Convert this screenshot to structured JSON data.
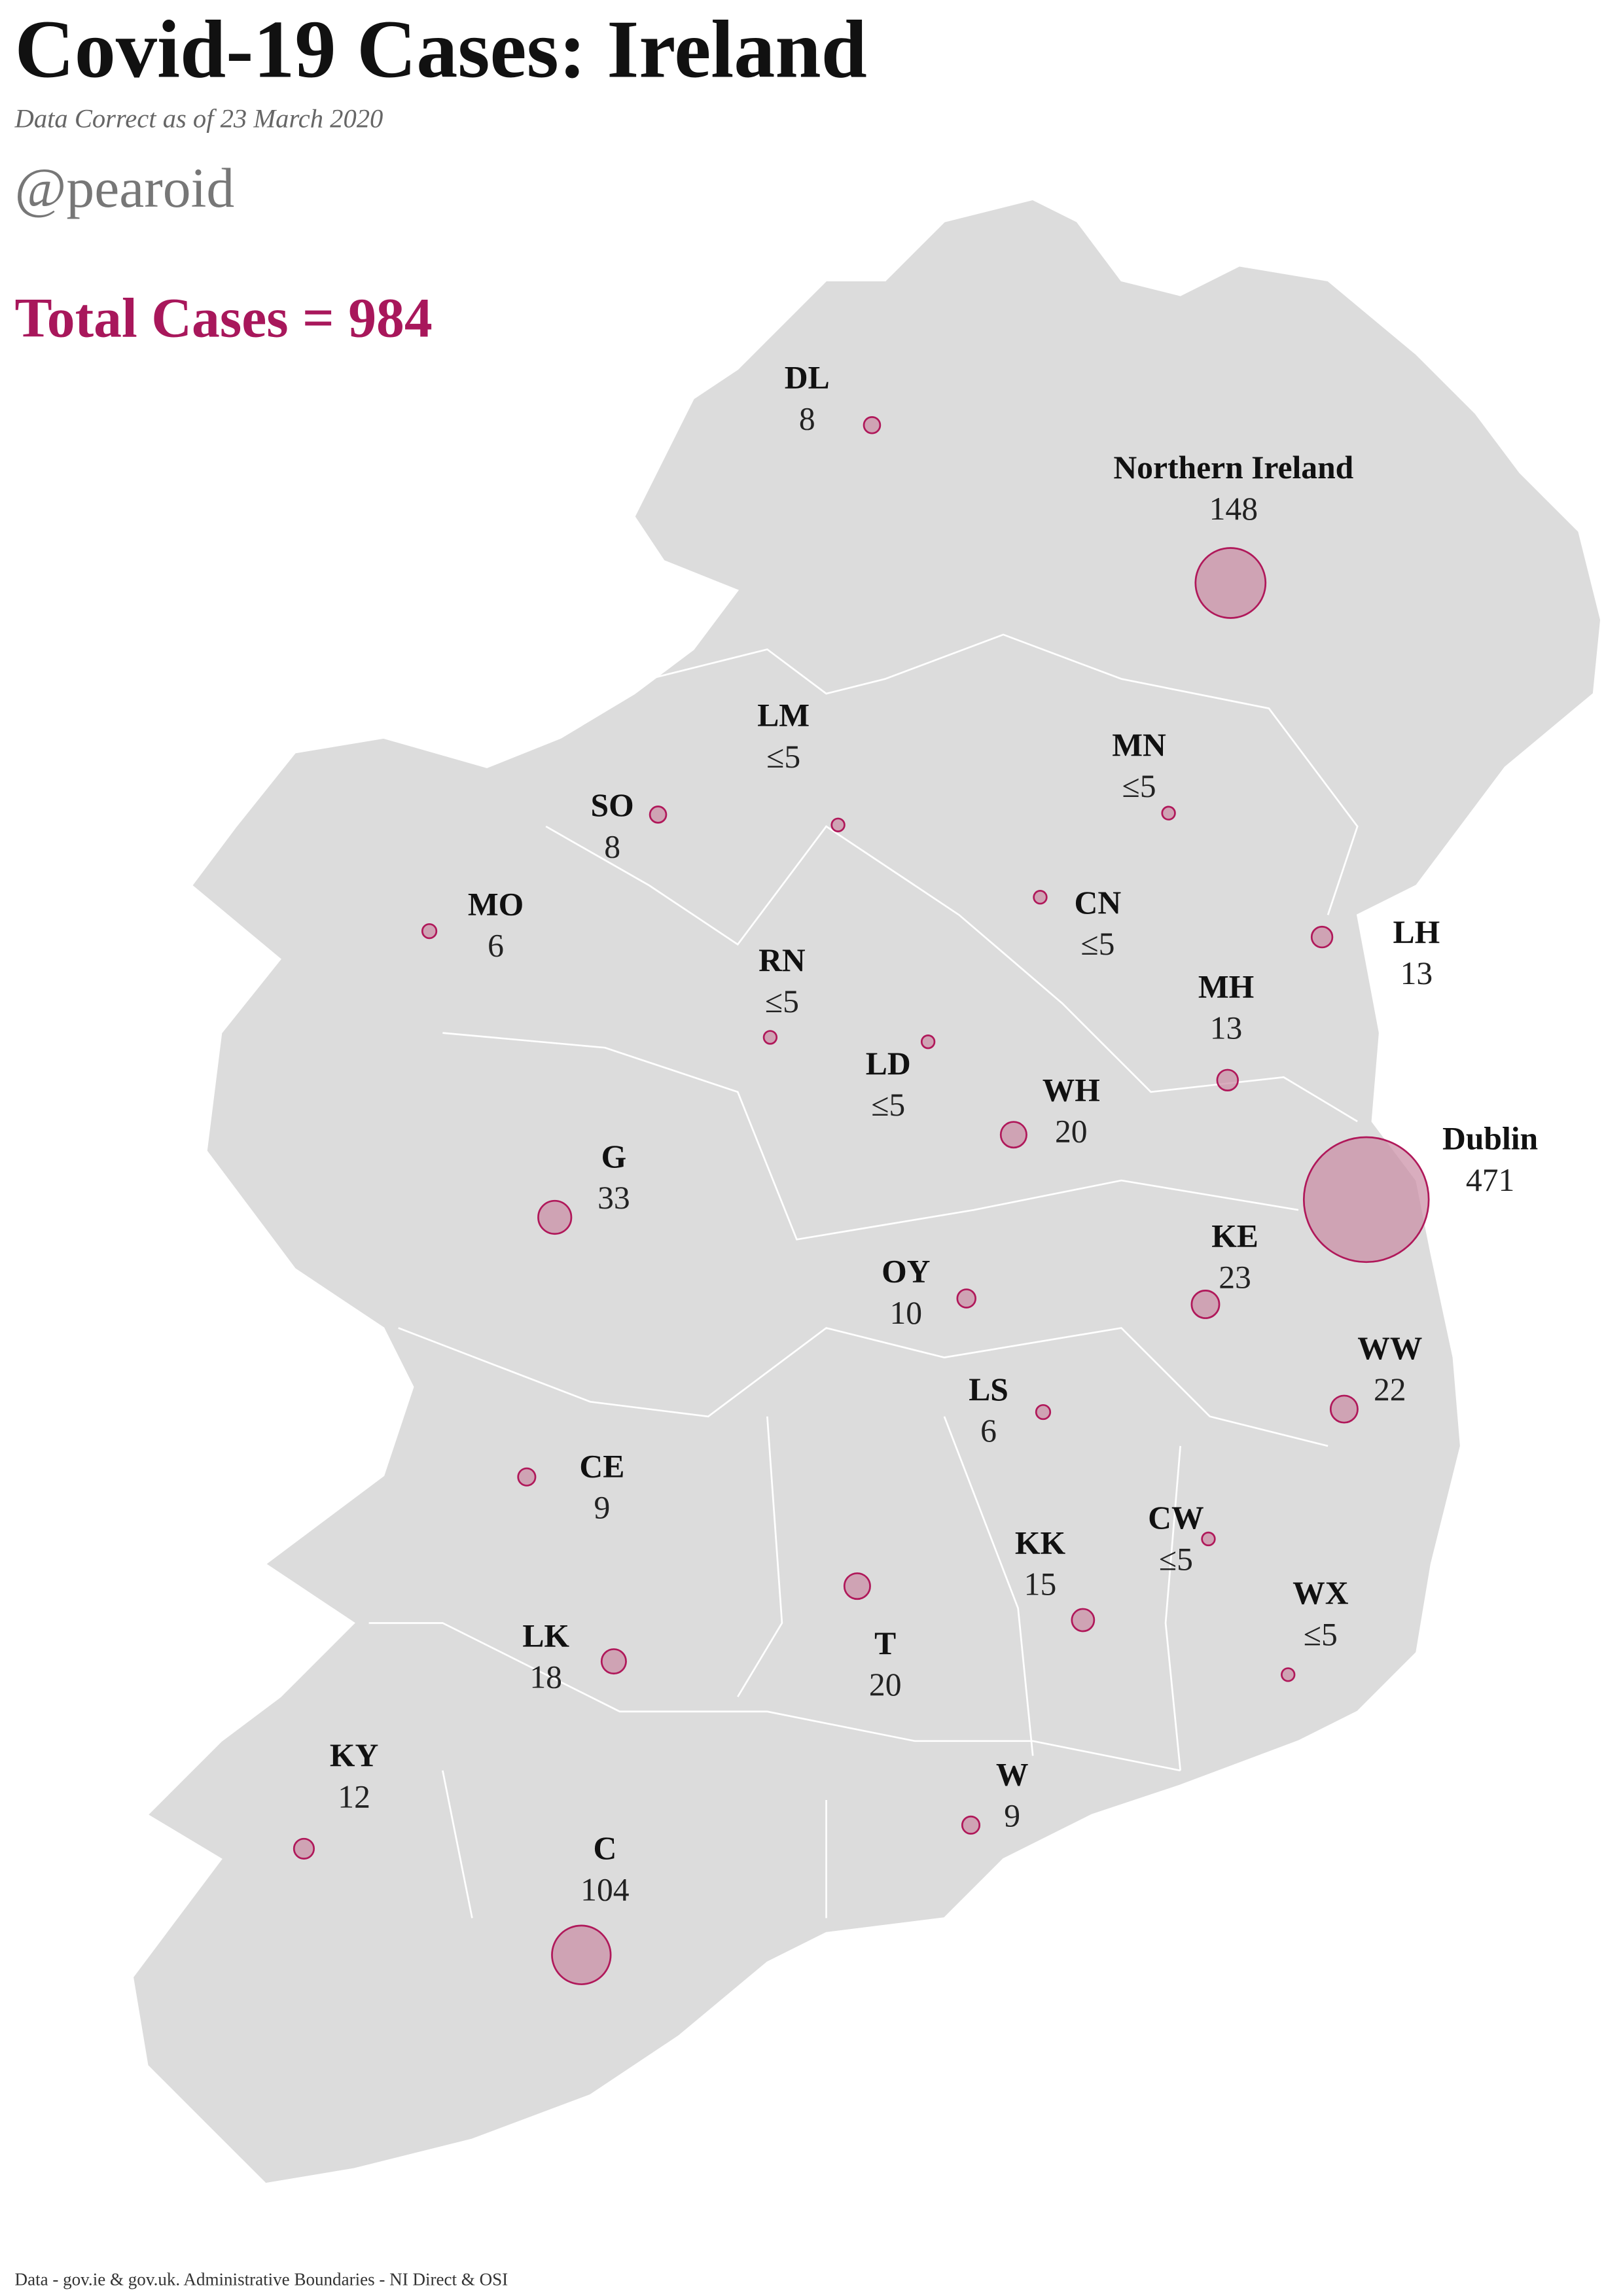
{
  "title": "Covid-19 Cases: Ireland",
  "subtitle": "Data Correct as of 23 March 2020",
  "handle": "@pearoid",
  "total": "Total Cases = 984",
  "footer": "Data - gov.ie & gov.uk. Administrative Boundaries - NI Direct & OSI",
  "map": {
    "type": "bubble-map",
    "bubble_color": "#c98aa3",
    "bubble_stroke": "#b0185a",
    "regions": [
      {
        "name": "DL",
        "value": 8
      },
      {
        "name": "Northern Ireland",
        "value": 148
      },
      {
        "name": "LM",
        "value": 5,
        "value_label": "≤5"
      },
      {
        "name": "MN",
        "value": 5,
        "value_label": "≤5"
      },
      {
        "name": "SO",
        "value": 8
      },
      {
        "name": "MO",
        "value": 6
      },
      {
        "name": "CN",
        "value": 5,
        "value_label": "≤5"
      },
      {
        "name": "LH",
        "value": 13
      },
      {
        "name": "RN",
        "value": 5,
        "value_label": "≤5"
      },
      {
        "name": "MH",
        "value": 13
      },
      {
        "name": "LD",
        "value": 5,
        "value_label": "≤5"
      },
      {
        "name": "WH",
        "value": 20
      },
      {
        "name": "Dublin",
        "value": 471
      },
      {
        "name": "G",
        "value": 33
      },
      {
        "name": "KE",
        "value": 23
      },
      {
        "name": "OY",
        "value": 10
      },
      {
        "name": "WW",
        "value": 22
      },
      {
        "name": "LS",
        "value": 6
      },
      {
        "name": "CE",
        "value": 9
      },
      {
        "name": "CW",
        "value": 5,
        "value_label": "≤5"
      },
      {
        "name": "KK",
        "value": 15
      },
      {
        "name": "WX",
        "value": 5,
        "value_label": "≤5"
      },
      {
        "name": "T",
        "value": 20
      },
      {
        "name": "LK",
        "value": 18
      },
      {
        "name": "KY",
        "value": 12
      },
      {
        "name": "W",
        "value": 9
      },
      {
        "name": "C",
        "value": 104
      }
    ]
  }
}
